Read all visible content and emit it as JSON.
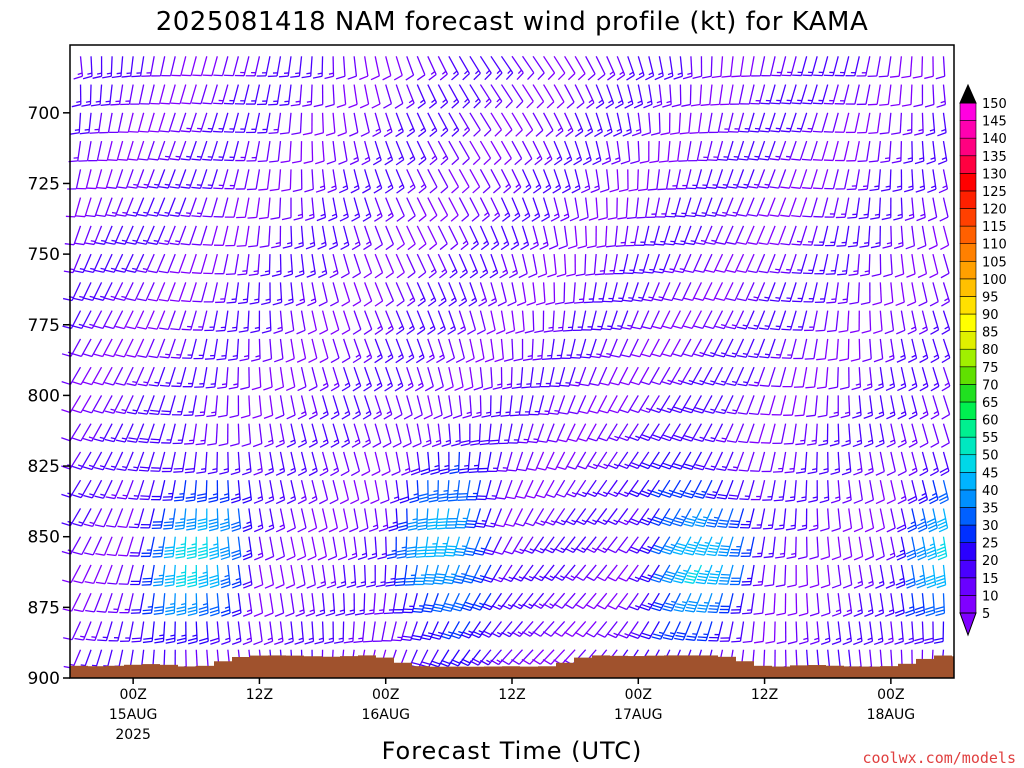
{
  "chart_data": {
    "type": "wind-barb-time-height",
    "title": "2025081418 NAM forecast wind profile (kt) for KAMA",
    "xlabel": "Forecast Time (UTC)",
    "ylabel": "",
    "units": "kt",
    "y_axis": {
      "reversed": true,
      "range": [
        676,
        900
      ],
      "ticks": [
        700,
        725,
        750,
        775,
        800,
        825,
        850,
        875,
        900
      ]
    },
    "x_axis": {
      "range_hours_from_init": [
        0,
        84
      ],
      "ticks": [
        {
          "label": "00Z",
          "date": "15AUG",
          "year": "2025"
        },
        {
          "label": "12Z",
          "date": "",
          "year": ""
        },
        {
          "label": "00Z",
          "date": "16AUG",
          "year": ""
        },
        {
          "label": "12Z",
          "date": "",
          "year": ""
        },
        {
          "label": "00Z",
          "date": "17AUG",
          "year": ""
        },
        {
          "label": "12Z",
          "date": "",
          "year": ""
        },
        {
          "label": "00Z",
          "date": "18AUG",
          "year": ""
        }
      ],
      "tick_hours": [
        6,
        18,
        30,
        42,
        54,
        66,
        78
      ]
    },
    "colorbar": {
      "levels": [
        5,
        10,
        15,
        20,
        25,
        30,
        35,
        40,
        45,
        50,
        55,
        60,
        65,
        70,
        75,
        80,
        85,
        90,
        95,
        100,
        105,
        110,
        115,
        120,
        125,
        130,
        135,
        140,
        145,
        150
      ],
      "colors": [
        "#8000ff",
        "#6a00ff",
        "#4a00ff",
        "#2a00ff",
        "#0030ff",
        "#0060ff",
        "#0090ff",
        "#00b4ff",
        "#00d8e8",
        "#00e8c0",
        "#00f090",
        "#00f050",
        "#20e020",
        "#60e000",
        "#a0f000",
        "#e0f000",
        "#ffff00",
        "#ffe000",
        "#ffc000",
        "#ffa000",
        "#ff8000",
        "#ff6000",
        "#ff4000",
        "#ff2000",
        "#ff0000",
        "#ff0040",
        "#ff0080",
        "#ff00b0",
        "#ff00e0",
        "#ff40ff"
      ]
    },
    "terrain_color": "#a0522d",
    "surface_pressure_range": [
      892,
      896
    ],
    "grid": false,
    "series_note_free": true,
    "wind_pattern": {
      "time_step_hours": 1,
      "levels": [
        680,
        690,
        700,
        710,
        720,
        730,
        740,
        750,
        760,
        770,
        780,
        790,
        800,
        810,
        820,
        830,
        840,
        850,
        860,
        870,
        880,
        890
      ],
      "max_speed_kt": 45,
      "min_speed_kt": 5,
      "prevailing_direction_deg": 200
    }
  },
  "credit": "coolwx.com/models"
}
